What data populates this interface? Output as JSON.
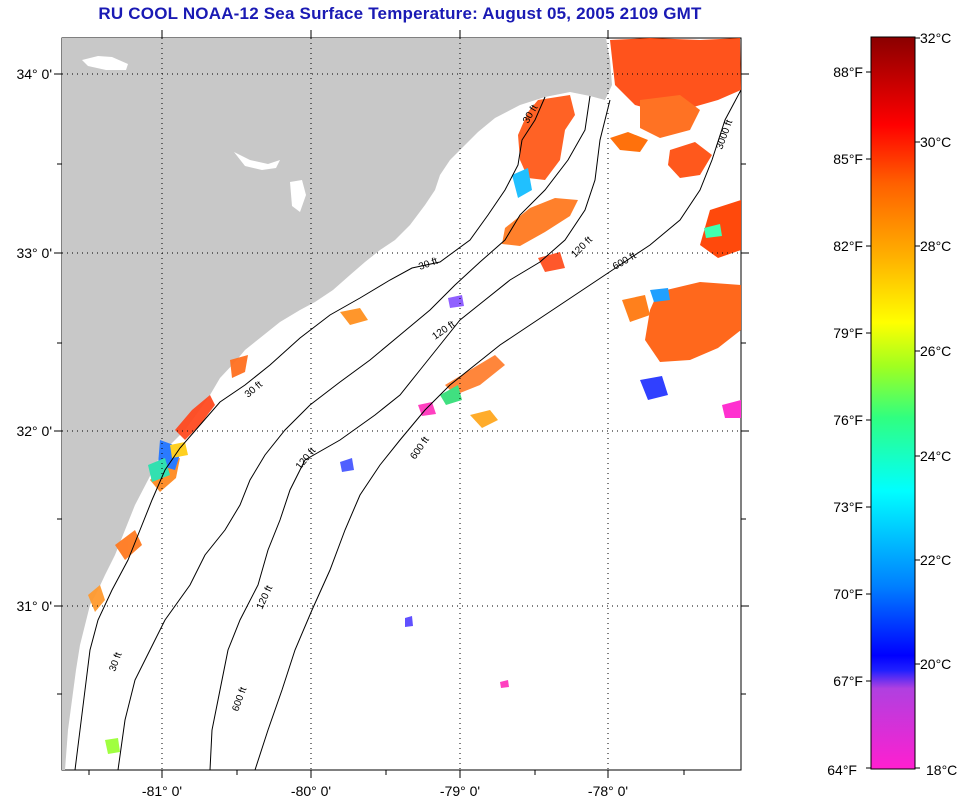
{
  "title": "RU COOL  NOAA-12  Sea Surface Temperature:  August 05, 2005 2109 GMT",
  "map": {
    "lat_labels": [
      "34° 0'",
      "33° 0'",
      "32° 0'",
      "31° 0'"
    ],
    "lon_labels": [
      "-81° 0'",
      "-80° 0'",
      "-79° 0'",
      "-78° 0'"
    ],
    "contour_labels": [
      "30 ft",
      "30 ft",
      "30 ft",
      "30 ft",
      "120 ft",
      "120 ft",
      "120 ft",
      "120 ft",
      "600 ft",
      "600 ft",
      "600 ft",
      "3000 ft"
    ]
  },
  "colorbar": {
    "fahrenheit_labels": [
      "88°F",
      "85°F",
      "82°F",
      "79°F",
      "76°F",
      "73°F",
      "70°F",
      "67°F",
      "64°F"
    ],
    "celsius_labels": [
      "32°C",
      "30°C",
      "28°C",
      "26°C",
      "24°C",
      "22°C",
      "20°C",
      "18°C"
    ]
  },
  "colors": {
    "land": "#c8c8c8",
    "ocean": "#ffffff",
    "title": "#1a1ab4"
  }
}
